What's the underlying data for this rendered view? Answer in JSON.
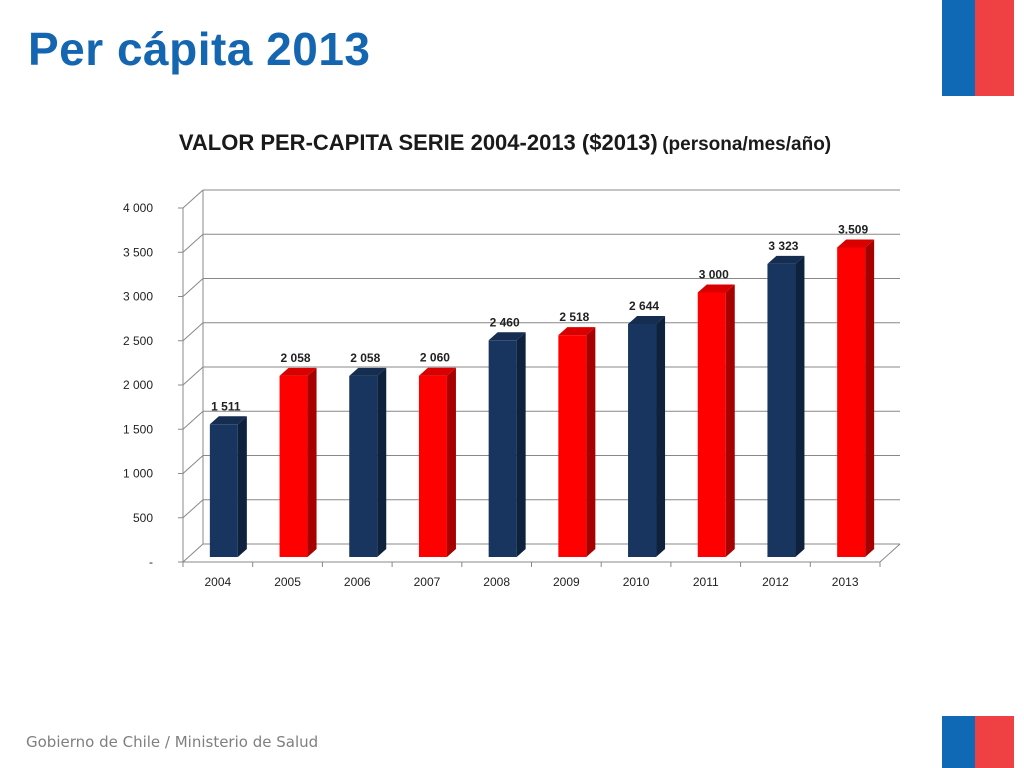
{
  "slide": {
    "title": "Per cápita 2013",
    "footer": "Gobierno de Chile / Ministerio de Salud"
  },
  "colors": {
    "title": "#1566b0",
    "navy": "#17355e",
    "red": "#ff0000",
    "flag_blue": "#0f69b4",
    "flag_red": "#ef4043"
  },
  "chart_data": {
    "type": "bar",
    "title": "VALOR PER-CAPITA SERIE 2004-2013 ($2013)",
    "subtitle": "(persona/mes/año)",
    "categories": [
      "2004",
      "2005",
      "2006",
      "2007",
      "2008",
      "2009",
      "2010",
      "2011",
      "2012",
      "2013"
    ],
    "values": [
      1511,
      2058,
      2058,
      2060,
      2460,
      2518,
      2644,
      3000,
      3323,
      3509
    ],
    "data_labels": [
      "1 511",
      "2 058",
      "2 058",
      "2 060",
      "2 460",
      "2 518",
      "2 644",
      "3 000",
      "3 323",
      "3.509"
    ],
    "bar_colors": [
      "#17355e",
      "#ff0000",
      "#17355e",
      "#ff0000",
      "#17355e",
      "#ff0000",
      "#17355e",
      "#ff0000",
      "#17355e",
      "#ff0000"
    ],
    "ylim": [
      0,
      4000
    ],
    "yticks": [
      0,
      500,
      1000,
      1500,
      2000,
      2500,
      3000,
      3500,
      4000
    ],
    "ytick_labels": [
      "-",
      "500",
      "1 000",
      "1 500",
      "2 000",
      "2 500",
      "3 000",
      "3 500",
      "4 000"
    ],
    "grid": true,
    "style": "3d-column",
    "xlabel": "",
    "ylabel": ""
  }
}
